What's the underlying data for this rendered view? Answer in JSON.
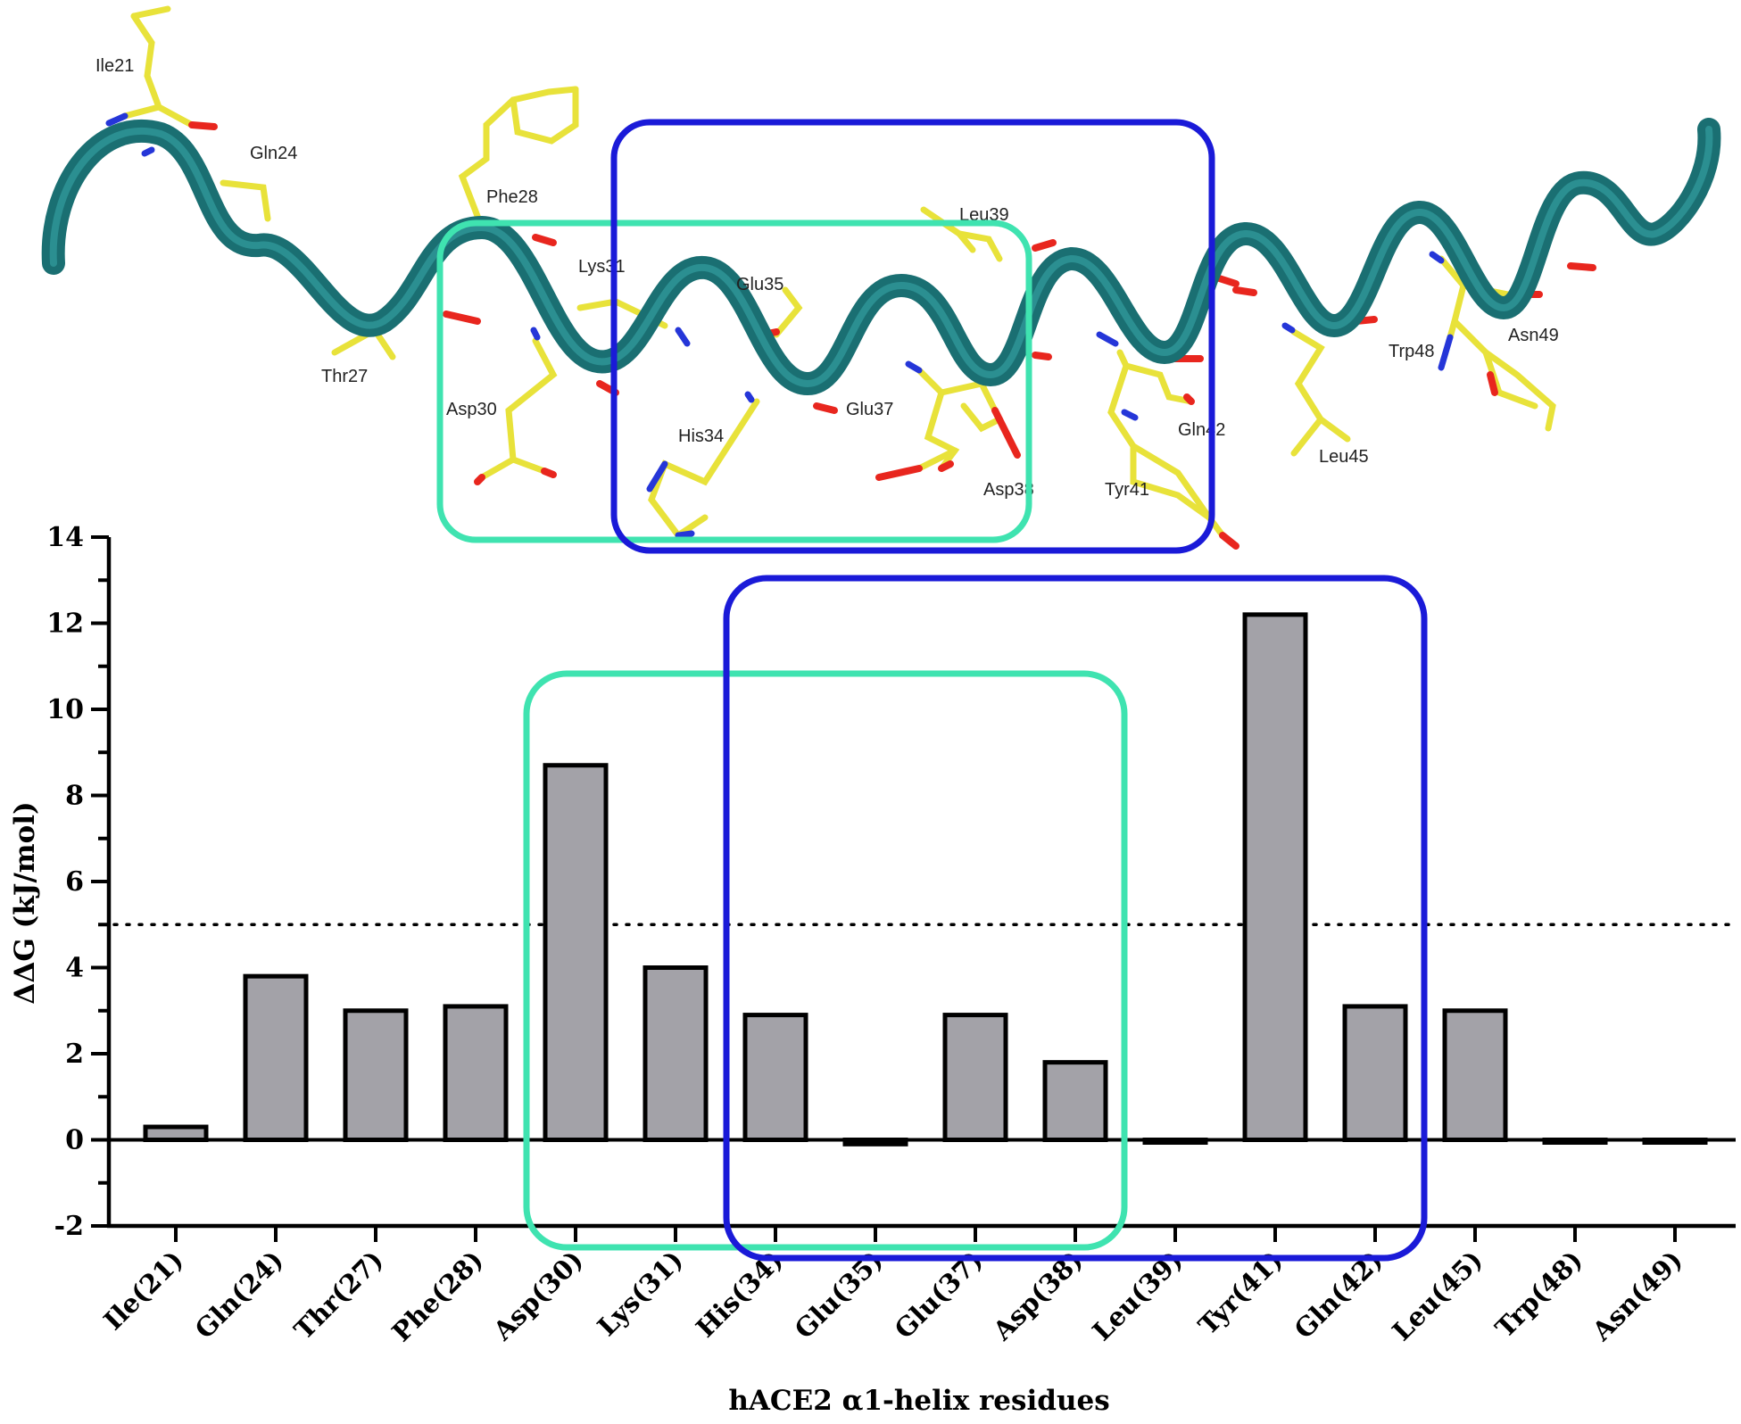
{
  "structure": {
    "residue_labels": [
      "Ile21",
      "Gln24",
      "Phe28",
      "Lys31",
      "Glu35",
      "Leu39",
      "Thr27",
      "Asp30",
      "His34",
      "Glu37",
      "Asp38",
      "Tyr41",
      "Gln42",
      "Leu45",
      "Trp48",
      "Asn49"
    ],
    "helix_color": "#1a6f72",
    "stick_color": "#e8e23a",
    "oxygen_color": "#e8261e",
    "nitrogen_color": "#2536d8"
  },
  "colors": {
    "bar_fill": "#a3a2a8",
    "bar_stroke": "#000000",
    "box_green": "#3fe3b0",
    "box_blue": "#1a1ad8"
  },
  "chart_data": {
    "type": "bar",
    "categories": [
      "Ile(21)",
      "Gln(24)",
      "Thr(27)",
      "Phe(28)",
      "Asp(30)",
      "Lys(31)",
      "His(34)",
      "Glu(35)",
      "Glu(37)",
      "Asp(38)",
      "Leu(39)",
      "Tyr(41)",
      "Gln(42)",
      "Leu(45)",
      "Trp(48)",
      "Asn(49)"
    ],
    "values": [
      0.3,
      3.8,
      3.0,
      3.1,
      8.7,
      4.0,
      2.9,
      -0.1,
      2.9,
      1.8,
      0.0,
      12.2,
      3.1,
      3.0,
      0.0,
      0.0
    ],
    "title": "",
    "xlabel": "hACE2 α1-helix residues",
    "ylabel": "ΔΔG (kJ/mol)",
    "ylim": [
      -2,
      14
    ],
    "yticks": [
      "-2",
      "0",
      "2",
      "4",
      "6",
      "8",
      "10",
      "12",
      "14"
    ],
    "threshold": 5,
    "threshold_style": "dotted",
    "highlight_boxes": [
      {
        "color": "green",
        "from": "Asp(30)",
        "to": "Asp(38)"
      },
      {
        "color": "blue",
        "from": "His(34)",
        "to": "Gln(42)"
      }
    ]
  }
}
